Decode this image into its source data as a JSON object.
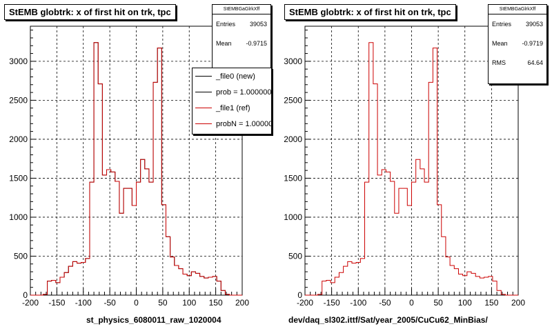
{
  "colors": {
    "new": "#000000",
    "ref": "#cc0000",
    "grid": "#000000"
  },
  "panels": [
    {
      "title": "StEMB globtrk: x of first hit on trk, tpc",
      "xlabel": "st_physics_6080011_raw_1020004",
      "stats": {
        "name": "StEMBGaGlrkXff",
        "entries_label": "Entries",
        "entries": "39053",
        "mean_label": "Mean",
        "mean": "-0.9715"
      },
      "legend": [
        {
          "label": "_file0 (new)",
          "color": "#000000"
        },
        {
          "label": "prob = 1.000000",
          "color": "#000000"
        },
        {
          "label": "_file1 (ref)",
          "color": "#cc0000"
        },
        {
          "label": "probN = 1.000000",
          "color": "#cc0000"
        }
      ]
    },
    {
      "title": "StEMB globtrk: x of first hit on trk, tpc",
      "xlabel": "dev/daq_sl302.ittf/Sat/year_2005/CuCu62_MinBias/",
      "stats": {
        "name": "StEMBGaGlrkXff",
        "entries_label": "Entries",
        "entries": "39053",
        "mean_label": "Mean",
        "mean": "-0.9719",
        "rms_label": "RMS",
        "rms": "64.64"
      }
    }
  ],
  "chart_data": [
    {
      "type": "histogram",
      "title": "StEMB globtrk: x of first hit on trk, tpc",
      "xlabel": "st_physics_6080011_raw_1020004",
      "xlim": [
        -200,
        200
      ],
      "ylim": [
        0,
        3450
      ],
      "x_ticks": [
        -200,
        -150,
        -100,
        -50,
        0,
        50,
        100,
        150,
        200
      ],
      "y_ticks": [
        0,
        500,
        1000,
        1500,
        2000,
        2500,
        3000
      ],
      "grid": true,
      "legend_position": "top-right",
      "bin_width": 8,
      "bin_edges_start": -200,
      "series": [
        {
          "name": "_file0 (new)",
          "color": "#000000",
          "values": [
            0,
            0,
            0,
            10,
            180,
            190,
            160,
            230,
            290,
            370,
            430,
            410,
            420,
            470,
            1450,
            3240,
            2710,
            1540,
            1610,
            1580,
            1460,
            1050,
            1370,
            1370,
            1150,
            1450,
            1740,
            1620,
            1450,
            2730,
            3170,
            1160,
            750,
            490,
            380,
            340,
            270,
            250,
            300,
            280,
            240,
            220,
            230,
            240,
            180,
            60,
            10,
            0,
            0,
            0
          ]
        },
        {
          "name": "_file1 (ref)",
          "color": "#cc0000",
          "values": [
            0,
            0,
            0,
            10,
            180,
            190,
            160,
            230,
            290,
            370,
            430,
            410,
            420,
            470,
            1450,
            3240,
            2710,
            1540,
            1610,
            1580,
            1460,
            1050,
            1370,
            1370,
            1150,
            1450,
            1740,
            1620,
            1450,
            2730,
            3170,
            1160,
            750,
            490,
            380,
            340,
            270,
            250,
            300,
            280,
            240,
            220,
            230,
            240,
            180,
            60,
            10,
            0,
            0,
            0
          ]
        }
      ]
    },
    {
      "type": "histogram",
      "title": "StEMB globtrk: x of first hit on trk, tpc",
      "xlabel": "dev/daq_sl302.ittf/Sat/year_2005/CuCu62_MinBias/",
      "xlim": [
        -200,
        200
      ],
      "ylim": [
        0,
        3450
      ],
      "x_ticks": [
        -200,
        -150,
        -100,
        -50,
        0,
        50,
        100,
        150,
        200
      ],
      "y_ticks": [
        0,
        500,
        1000,
        1500,
        2000,
        2500,
        3000
      ],
      "grid": true,
      "bin_width": 8,
      "bin_edges_start": -200,
      "series": [
        {
          "color": "#cc0000",
          "values": [
            0,
            0,
            0,
            10,
            180,
            190,
            160,
            230,
            290,
            370,
            430,
            410,
            420,
            470,
            1450,
            3240,
            2710,
            1540,
            1610,
            1580,
            1460,
            1050,
            1370,
            1370,
            1150,
            1450,
            1740,
            1620,
            1450,
            2730,
            3170,
            1160,
            750,
            490,
            380,
            340,
            270,
            250,
            300,
            280,
            240,
            220,
            230,
            240,
            180,
            60,
            10,
            0,
            0,
            0
          ]
        }
      ]
    }
  ]
}
